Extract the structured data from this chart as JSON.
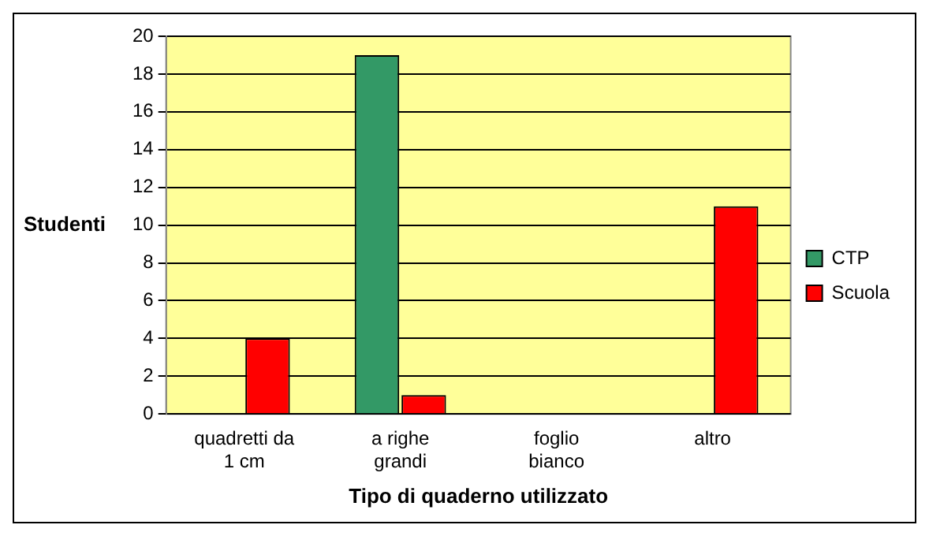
{
  "chart_data": {
    "type": "bar",
    "xlabel": "Tipo di quaderno utilizzato",
    "ylabel": "Studenti",
    "categories": [
      "quadretti da 1 cm",
      "a righe grandi",
      "foglio bianco",
      "altro"
    ],
    "series": [
      {
        "name": "CTP",
        "color": "#339966",
        "values": [
          0,
          19,
          0,
          0
        ]
      },
      {
        "name": "Scuola",
        "color": "#ff0000",
        "values": [
          4,
          1,
          0,
          11
        ]
      }
    ],
    "ylim": [
      0,
      20
    ],
    "yticks": [
      0,
      2,
      4,
      6,
      8,
      10,
      12,
      14,
      16,
      18,
      20
    ],
    "grid": "y",
    "legend": "right"
  }
}
